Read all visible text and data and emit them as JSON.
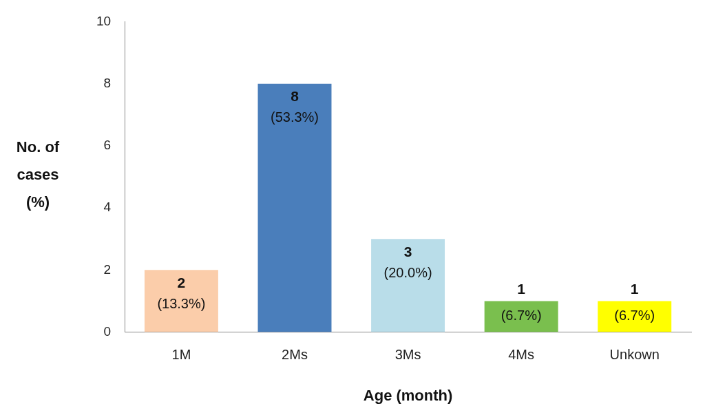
{
  "chart_data": {
    "type": "bar",
    "xlabel": "Age (month)",
    "ylabel": "No. of cases (%)",
    "categories": [
      "1M",
      "2Ms",
      "3Ms",
      "4Ms",
      "Unkown"
    ],
    "values": [
      2,
      8,
      3,
      1,
      1
    ],
    "colors": [
      "#fbcdaa",
      "#4a7ebb",
      "#b9dde9",
      "#7abf4e",
      "#ffff00"
    ],
    "value_labels": [
      "2 (13.3%)",
      "8 (53.3%)",
      "3 (20.0%)",
      "1 (6.7%)",
      "1 (6.7%)"
    ],
    "ylim": [
      0,
      10
    ],
    "yticks": [
      0,
      2,
      4,
      6,
      8,
      10
    ],
    "grid": false,
    "legend": false
  }
}
